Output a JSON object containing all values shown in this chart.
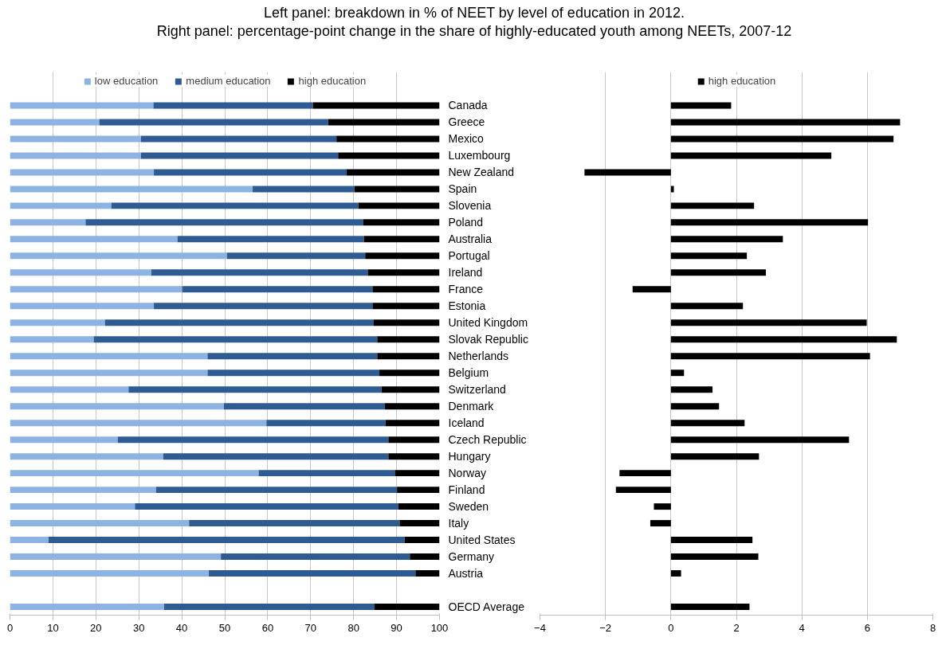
{
  "chart_data": [
    {
      "type": "bar",
      "orientation": "horizontal",
      "stacked": true,
      "title": "Left panel: breakdown in % of NEET by level of education in 2012.",
      "categories": [
        "Canada",
        "Greece",
        "Mexico",
        "Luxembourg",
        "New Zealand",
        "Spain",
        "Slovenia",
        "Poland",
        "Australia",
        "Portugal",
        "Ireland",
        "France",
        "Estonia",
        "United Kingdom",
        "Slovak Republic",
        "Netherlands",
        "Belgium",
        "Switzerland",
        "Denmark",
        "Iceland",
        "Czech Republic",
        "Hungary",
        "Norway",
        "Finland",
        "Sweden",
        "Italy",
        "United States",
        "Germany",
        "Austria",
        null,
        "OECD Average"
      ],
      "series": [
        {
          "name": "low education",
          "color": "#8db3e2",
          "values": [
            33.4,
            20.8,
            30.5,
            30.5,
            33.5,
            56.5,
            23.6,
            17.6,
            39.0,
            50.5,
            32.9,
            40.1,
            33.5,
            22.1,
            19.5,
            46.0,
            46.0,
            27.6,
            49.8,
            59.7,
            25.1,
            35.7,
            57.9,
            34.0,
            29.1,
            41.7,
            9.0,
            49.1,
            46.3,
            null,
            35.9
          ]
        },
        {
          "name": "medium education",
          "color": "#2f5b93",
          "values": [
            37.1,
            53.3,
            45.5,
            45.9,
            44.9,
            23.7,
            57.5,
            64.6,
            43.4,
            32.2,
            50.4,
            44.3,
            50.9,
            62.5,
            66.0,
            39.5,
            40.0,
            58.9,
            37.5,
            27.7,
            63.0,
            52.4,
            31.7,
            56.1,
            61.3,
            49.0,
            82.9,
            44.0,
            48.1,
            null,
            48.9
          ]
        },
        {
          "name": "high education",
          "color": "#000000",
          "values": [
            29.5,
            25.9,
            24.0,
            23.6,
            21.6,
            19.8,
            18.9,
            17.8,
            17.6,
            17.3,
            16.7,
            15.6,
            15.6,
            15.4,
            14.5,
            14.5,
            14.0,
            13.5,
            12.7,
            12.6,
            11.9,
            11.9,
            10.4,
            9.9,
            9.6,
            9.3,
            8.1,
            6.9,
            5.6,
            null,
            15.2
          ]
        }
      ],
      "xlim": [
        0,
        100
      ],
      "xticks": [
        0,
        10,
        20,
        30,
        40,
        50,
        60,
        70,
        80,
        90,
        100
      ],
      "grid": "x",
      "legend": "top"
    },
    {
      "type": "bar",
      "orientation": "horizontal",
      "title": "Right panel: percentage-point change in the share of highly-educated youth among NEETs, 2007-12",
      "categories": [
        null,
        null,
        null,
        null,
        null,
        null,
        null,
        null,
        null,
        null,
        null,
        null,
        null,
        null,
        null,
        null,
        null,
        null,
        null,
        null,
        null,
        null,
        null,
        null,
        null,
        null,
        null,
        null,
        null,
        null,
        null
      ],
      "series": [
        {
          "name": "high education",
          "color": "#000000",
          "values": [
            1.84,
            7.0,
            6.8,
            4.9,
            -2.64,
            0.09,
            2.54,
            6.02,
            3.42,
            2.32,
            2.9,
            -1.17,
            2.2,
            5.98,
            6.9,
            6.08,
            0.4,
            1.27,
            1.47,
            2.25,
            5.44,
            2.69,
            -1.57,
            -1.68,
            -0.52,
            -0.63,
            2.49,
            2.67,
            0.31,
            null,
            2.4
          ]
        }
      ],
      "xlim": [
        -4,
        8
      ],
      "xticks": [
        -4,
        -2,
        0,
        2,
        4,
        6,
        8
      ],
      "grid": "x",
      "legend": "top",
      "tick_labels": "x"
    }
  ]
}
